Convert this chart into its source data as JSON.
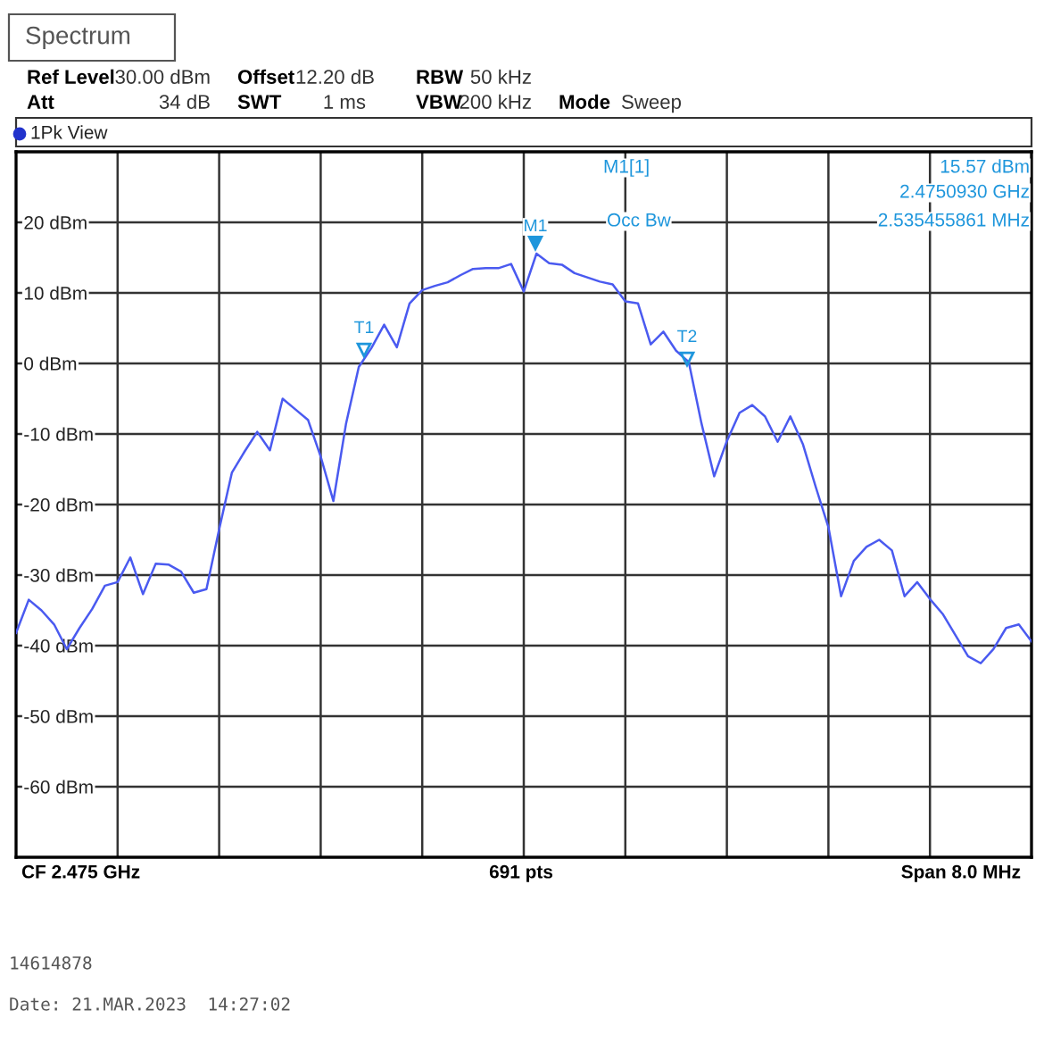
{
  "chart_data": {
    "type": "line",
    "title": "Spectrum",
    "annotations": [
      "Ref Level",
      "30.00 dBm",
      "Offset",
      "12.20 dB",
      "RBW",
      "50 kHz",
      "Att",
      "34 dB",
      "SWT",
      "1 ms",
      "VBW",
      "200 kHz",
      "Mode",
      "Sweep",
      "1Pk View",
      "M1[1]",
      "15.57 dBm",
      "2.4750930 GHz",
      "2.535455861 MHz",
      "Occ Bw",
      "CF 2.475 GHz",
      "691 pts",
      "Span 8.0 MHz",
      "14614878",
      "Date: 21.MAR.2023  14:27:02",
      "M1",
      "T1",
      "T2"
    ],
    "categories": [
      null,
      null,
      null,
      null,
      null,
      null,
      null,
      null,
      null,
      null,
      null,
      null,
      null,
      null,
      null,
      null,
      null,
      null,
      null,
      null,
      null,
      null,
      null,
      null,
      null,
      null,
      null,
      null,
      null,
      null,
      null,
      null,
      null,
      null,
      null,
      null,
      null,
      null,
      null,
      null,
      null,
      null,
      null,
      null,
      null,
      null,
      null,
      null,
      null,
      null,
      null,
      null,
      null,
      null,
      null,
      null,
      null,
      null,
      null,
      null,
      null,
      null,
      null,
      null,
      null,
      null,
      null,
      null,
      null,
      null,
      null,
      null,
      null,
      null,
      null,
      null,
      null,
      null,
      null,
      null,
      null
    ],
    "series": [
      {
        "color": "#4a5af0",
        "values": [
          -38.2,
          -33.5,
          -35.0,
          -37.0,
          -40.5,
          -37.5,
          -34.8,
          -31.5,
          -31.0,
          -27.5,
          -32.7,
          -28.4,
          -28.5,
          -29.5,
          -32.5,
          -32.0,
          -23.5,
          -15.5,
          -12.5,
          -9.7,
          -12.3,
          -5.0,
          -6.5,
          -8.0,
          -13.2,
          -19.5,
          -8.5,
          -0.5,
          2.2,
          5.5,
          2.3,
          8.5,
          10.4,
          11.0,
          11.5,
          12.5,
          13.4,
          13.5,
          13.5,
          14.1,
          10.2,
          15.57,
          14.2,
          14.0,
          12.8,
          12.2,
          11.6,
          11.2,
          8.8,
          8.5,
          2.7,
          4.5,
          1.8,
          0.2,
          -8.5,
          -16.0,
          -11.0,
          -7.0,
          -5.9,
          -7.5,
          -11.1,
          -7.5,
          -11.5,
          -17.5,
          -23.2,
          -33.0,
          -28.0,
          -26.0,
          -25.0,
          -26.5,
          -33.0,
          -31.0,
          -33.4,
          -35.5,
          -38.5,
          -41.5,
          -42.5,
          -40.5,
          -37.5,
          -37.0,
          -39.4
        ]
      }
    ],
    "ylim": [
      -70,
      30
    ],
    "yticks": [
      {
        "value": 20,
        "label": "20 dBm"
      },
      {
        "value": 10,
        "label": "10 dBm"
      },
      {
        "value": 0,
        "label": "0 dBm"
      },
      {
        "value": -10,
        "label": "-10 dBm"
      },
      {
        "value": -20,
        "label": "-20 dBm"
      },
      {
        "value": -30,
        "label": "-30 dBm"
      },
      {
        "value": -40,
        "label": "-40 dBm"
      },
      {
        "value": -50,
        "label": "-50 dBm"
      },
      {
        "value": -60,
        "label": "-60 dBm"
      }
    ],
    "tick_labels": "y",
    "grid": true
  }
}
